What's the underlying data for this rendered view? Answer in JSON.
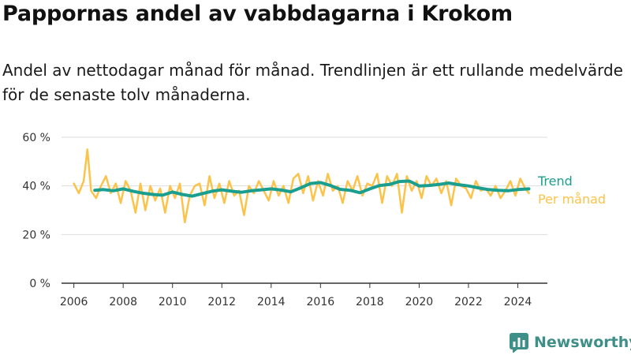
{
  "title": "Pappornas andel av vabbdagarna i Krokom",
  "subtitle": "Andel av nettodagar månad för månad. Trendlinjen är ett rullande medelvärde för de senaste tolv månaderna.",
  "brand": {
    "name": "Newsworthy",
    "icon": "newsworthy-logo-icon",
    "color": "#3d8f87"
  },
  "colors": {
    "trend": "#1a9e8f",
    "monthly": "#fbc34a",
    "grid": "#dddddd",
    "axis": "#333333"
  },
  "chart_data": {
    "type": "line",
    "xlim": [
      2005.5,
      2025.2
    ],
    "ylim": [
      0,
      60
    ],
    "x_ticks": [
      2006,
      2008,
      2010,
      2012,
      2014,
      2016,
      2018,
      2020,
      2022,
      2024
    ],
    "y_ticks": [
      0,
      20,
      40,
      60
    ],
    "y_tick_labels": [
      "0 %",
      "20 %",
      "40 %",
      "60 %"
    ],
    "x_tick_labels": [
      "2006",
      "2008",
      "2010",
      "2012",
      "2014",
      "2016",
      "2018",
      "2020",
      "2022",
      "2024"
    ],
    "legend": [
      "Trend",
      "Per månad"
    ],
    "series": [
      {
        "name": "Per månad",
        "color": "#fbc34a",
        "x": [
          2006.0,
          2006.2,
          2006.4,
          2006.55,
          2006.7,
          2006.9,
          2007.1,
          2007.3,
          2007.5,
          2007.7,
          2007.9,
          2008.1,
          2008.3,
          2008.5,
          2008.7,
          2008.9,
          2009.1,
          2009.3,
          2009.5,
          2009.7,
          2009.9,
          2010.1,
          2010.3,
          2010.5,
          2010.7,
          2010.9,
          2011.1,
          2011.3,
          2011.5,
          2011.7,
          2011.9,
          2012.1,
          2012.3,
          2012.5,
          2012.7,
          2012.9,
          2013.1,
          2013.3,
          2013.5,
          2013.7,
          2013.9,
          2014.1,
          2014.3,
          2014.5,
          2014.7,
          2014.9,
          2015.1,
          2015.3,
          2015.5,
          2015.7,
          2015.9,
          2016.1,
          2016.3,
          2016.5,
          2016.7,
          2016.9,
          2017.1,
          2017.3,
          2017.5,
          2017.7,
          2017.9,
          2018.1,
          2018.3,
          2018.5,
          2018.7,
          2018.9,
          2019.1,
          2019.3,
          2019.5,
          2019.7,
          2019.9,
          2020.1,
          2020.3,
          2020.5,
          2020.7,
          2020.9,
          2021.1,
          2021.3,
          2021.5,
          2021.7,
          2021.9,
          2022.1,
          2022.3,
          2022.5,
          2022.7,
          2022.9,
          2023.1,
          2023.3,
          2023.5,
          2023.7,
          2023.9,
          2024.1,
          2024.3,
          2024.45
        ],
        "values": [
          41,
          37,
          42,
          55,
          38,
          35,
          40,
          44,
          37,
          41,
          33,
          42,
          38,
          29,
          41,
          30,
          40,
          34,
          39,
          29,
          40,
          35,
          41,
          25,
          36,
          40,
          41,
          32,
          44,
          35,
          41,
          33,
          42,
          36,
          38,
          28,
          40,
          37,
          42,
          38,
          34,
          42,
          36,
          40,
          33,
          43,
          45,
          37,
          44,
          34,
          42,
          36,
          45,
          38,
          40,
          33,
          42,
          38,
          44,
          36,
          41,
          40,
          45,
          33,
          44,
          40,
          45,
          29,
          44,
          38,
          42,
          35,
          44,
          40,
          43,
          37,
          42,
          32,
          43,
          40,
          39,
          35,
          42,
          38,
          39,
          36,
          40,
          35,
          38,
          42,
          36,
          43,
          39,
          37
        ]
      },
      {
        "name": "Trend",
        "color": "#1a9e8f",
        "x": [
          2006.85,
          2007.2,
          2007.6,
          2008.0,
          2008.4,
          2008.8,
          2009.2,
          2009.6,
          2010.0,
          2010.4,
          2010.8,
          2011.2,
          2011.6,
          2012.0,
          2012.4,
          2012.8,
          2013.2,
          2013.6,
          2014.0,
          2014.4,
          2014.8,
          2015.2,
          2015.6,
          2016.0,
          2016.4,
          2016.8,
          2017.2,
          2017.6,
          2018.0,
          2018.4,
          2018.8,
          2019.2,
          2019.6,
          2020.0,
          2020.4,
          2020.8,
          2021.2,
          2021.6,
          2022.0,
          2022.4,
          2022.8,
          2023.2,
          2023.6,
          2024.0,
          2024.45
        ],
        "values": [
          38.2,
          38.5,
          38.0,
          38.8,
          37.8,
          37.0,
          36.5,
          36.2,
          37.5,
          36.5,
          35.8,
          36.8,
          37.8,
          38.4,
          37.8,
          37.4,
          38.0,
          38.4,
          38.8,
          38.3,
          37.6,
          39.2,
          41.0,
          41.4,
          40.2,
          38.6,
          38.2,
          37.2,
          38.8,
          40.2,
          40.6,
          41.8,
          42.0,
          40.0,
          40.2,
          40.6,
          41.2,
          40.5,
          40.0,
          39.2,
          38.5,
          38.2,
          38.0,
          38.5,
          38.8
        ]
      }
    ]
  }
}
